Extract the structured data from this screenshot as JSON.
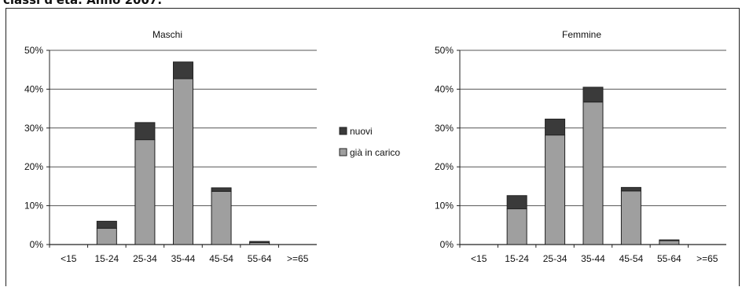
{
  "caption": "classi d'età. Anno 2007.",
  "legend": [
    {
      "label": "nuovi",
      "color": "#3a3a3a"
    },
    {
      "label": "già in carico",
      "color": "#9f9f9f"
    }
  ],
  "chart_data": [
    {
      "type": "bar",
      "stacked": true,
      "title": "Maschi",
      "categories": [
        "<15",
        "15-24",
        "25-34",
        "35-44",
        "45-54",
        "55-64",
        ">=65"
      ],
      "series": [
        {
          "name": "già in carico",
          "values": [
            0,
            4.2,
            27.0,
            42.7,
            13.7,
            0.5,
            0
          ]
        },
        {
          "name": "nuovi",
          "values": [
            0,
            1.8,
            4.4,
            4.3,
            0.9,
            0.3,
            0
          ]
        }
      ],
      "ylim": [
        0,
        50
      ],
      "yticks": [
        "0%",
        "10%",
        "20%",
        "30%",
        "40%",
        "50%"
      ],
      "grid": true,
      "legend_position": "center-right"
    },
    {
      "type": "bar",
      "stacked": true,
      "title": "Femmine",
      "categories": [
        "<15",
        "15-24",
        "25-34",
        "35-44",
        "45-54",
        "55-64",
        ">=65"
      ],
      "series": [
        {
          "name": "già in carico",
          "values": [
            0,
            9.2,
            28.2,
            36.7,
            13.8,
            1.0,
            0
          ]
        },
        {
          "name": "nuovi",
          "values": [
            0,
            3.4,
            4.1,
            3.8,
            0.9,
            0.2,
            0
          ]
        }
      ],
      "ylim": [
        0,
        50
      ],
      "yticks": [
        "0%",
        "10%",
        "20%",
        "30%",
        "40%",
        "50%"
      ],
      "grid": true
    }
  ]
}
